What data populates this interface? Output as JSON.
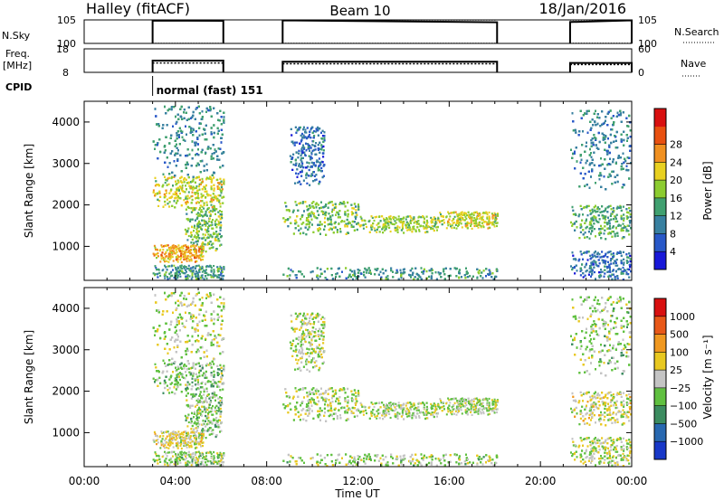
{
  "header": {
    "station": "Halley (fitACF)",
    "beam": "Beam 10",
    "date": "18/Jan/2016"
  },
  "chart_data": {
    "type": "heatmap",
    "x_axis": {
      "label": "Time UT",
      "range_hours": [
        0,
        24
      ],
      "ticks": [
        "00:00",
        "04:00",
        "08:00",
        "12:00",
        "16:00",
        "20:00",
        "00:00"
      ]
    },
    "operation_periods_hours": [
      [
        3.0,
        6.1
      ],
      [
        8.7,
        18.1
      ],
      [
        21.3,
        24.0
      ]
    ],
    "nsky_panel": {
      "left_label": "N.Sky",
      "left_ticks": [
        "10^5",
        "10^0"
      ],
      "right_label": "N.Search",
      "right_ticks": [
        "10^5",
        "10^0"
      ],
      "ylim_log10": [
        0,
        5
      ],
      "nsky_log10_by_period": [
        [
          4.85,
          4.8
        ],
        [
          4.9,
          4.5
        ],
        [
          4.55,
          4.9
        ]
      ]
    },
    "freq_panel": {
      "left_label_line1": "Freq.",
      "left_label_line2": "[MHz]",
      "left_ticks": [
        18,
        8
      ],
      "ylim_mhz": [
        8,
        18
      ],
      "right_label": "Nave",
      "right_ticks": [
        60,
        0
      ],
      "ylim_nave": [
        0,
        60
      ],
      "freq_mhz_by_period": [
        13,
        12.5,
        12
      ],
      "nave_by_period": [
        24,
        22,
        20
      ]
    },
    "cpid": {
      "label": "CPID",
      "mode": "normal (fast) 151",
      "start_hour": 3.0
    },
    "power_panel": {
      "ylabel": "Slant Range [km]",
      "ylim_km": [
        180,
        4500
      ],
      "yticks": [
        1000,
        2000,
        3000,
        4000
      ],
      "colorbar_label": "Power [dB]",
      "colorbar_ticks": [
        "4",
        "8",
        "12",
        "16",
        "20",
        "24",
        "28"
      ],
      "colorbar_colors": [
        "#1818d8",
        "#2858c8",
        "#3880a0",
        "#40a070",
        "#8ccc30",
        "#e8d020",
        "#f09020",
        "#e85010",
        "#d81010"
      ]
    },
    "velocity_panel": {
      "ylabel": "Slant Range [km]",
      "ylim_km": [
        180,
        4500
      ],
      "yticks": [
        1000,
        2000,
        3000,
        4000
      ],
      "colorbar_label": "Velocity [m s⁻¹]",
      "colorbar_ticks": [
        "1000",
        "500",
        "100",
        "25",
        "−25",
        "−100",
        "−500",
        "−1000"
      ],
      "colorbar_colors": [
        "#1838c8",
        "#2868b0",
        "#3c8c60",
        "#60c040",
        "#c4c4c4",
        "#e8c820",
        "#f09820",
        "#e85818",
        "#d81010"
      ]
    },
    "scatter_bands": [
      {
        "t0": 3.0,
        "t1": 6.1,
        "r0": 1950,
        "r1": 2700,
        "power": 18,
        "vel": 40
      },
      {
        "t0": 4.4,
        "t1": 6.0,
        "r0": 900,
        "r1": 1950,
        "power": 14,
        "vel": 30
      },
      {
        "t0": 3.0,
        "t1": 5.2,
        "r0": 640,
        "r1": 1050,
        "power": 22,
        "vel": -40
      },
      {
        "t0": 3.0,
        "t1": 6.1,
        "r0": 180,
        "r1": 560,
        "power": 10,
        "vel": 20
      },
      {
        "t0": 3.0,
        "t1": 6.1,
        "r0": 2700,
        "r1": 4400,
        "power": 9,
        "vel": 0
      },
      {
        "t0": 8.7,
        "t1": 12.0,
        "r0": 1300,
        "r1": 2100,
        "power": 14,
        "vel": 5
      },
      {
        "t0": 12.0,
        "t1": 15.5,
        "r0": 1350,
        "r1": 1750,
        "power": 16,
        "vel": 10
      },
      {
        "t0": 15.5,
        "t1": 18.1,
        "r0": 1450,
        "r1": 1850,
        "power": 18,
        "vel": 10
      },
      {
        "t0": 8.7,
        "t1": 18.1,
        "r0": 180,
        "r1": 500,
        "power": 10,
        "vel": 15
      },
      {
        "t0": 9.0,
        "t1": 10.5,
        "r0": 2500,
        "r1": 3900,
        "power": 6,
        "vel": 0
      },
      {
        "t0": 21.3,
        "t1": 24.0,
        "r0": 1200,
        "r1": 2000,
        "power": 12,
        "vel": -30
      },
      {
        "t0": 21.3,
        "t1": 24.0,
        "r0": 2400,
        "r1": 4300,
        "power": 8,
        "vel": 20
      },
      {
        "t0": 21.3,
        "t1": 24.0,
        "r0": 180,
        "r1": 900,
        "power": 6,
        "vel": 0
      }
    ]
  }
}
